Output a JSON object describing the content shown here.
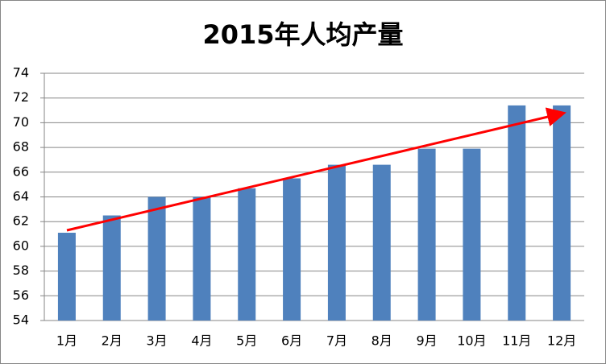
{
  "chart_data": {
    "type": "bar",
    "title": "2015年人均产量",
    "categories": [
      "1月",
      "2月",
      "3月",
      "4月",
      "5月",
      "6月",
      "7月",
      "8月",
      "9月",
      "10月",
      "11月",
      "12月"
    ],
    "values": [
      61.1,
      62.5,
      64.0,
      64.0,
      64.7,
      65.5,
      66.6,
      66.6,
      67.9,
      67.9,
      71.4,
      71.4
    ],
    "color": "#4f81bd",
    "ylim": [
      54,
      74
    ],
    "yticks": [
      54,
      56,
      58,
      60,
      62,
      64,
      66,
      68,
      70,
      72,
      74
    ],
    "grid": true
  }
}
